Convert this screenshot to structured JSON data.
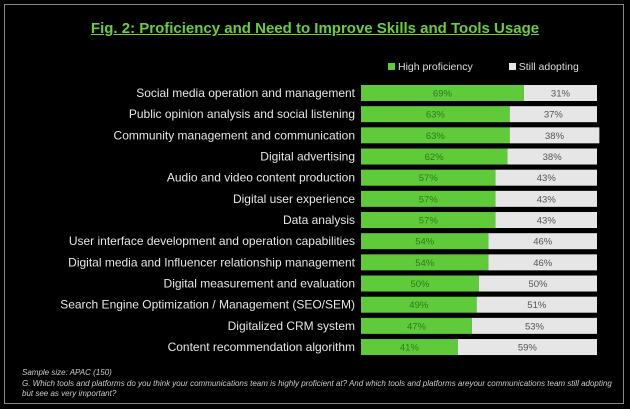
{
  "chart_data": {
    "type": "bar",
    "stacked": true,
    "orientation": "horizontal",
    "title": "Fig. 2: Proficiency and Need to Improve Skills and Tools Usage",
    "legend_position": "top-right",
    "categories": [
      "Social media operation and management",
      "Public opinion analysis and social listening",
      "Community management and communication",
      "Digital advertising",
      "Audio and video content production",
      "Digital user experience",
      "Data analysis",
      "User interface development and operation capabilities",
      "Digital media and Influencer relationship management",
      "Digital measurement and evaluation",
      "Search Engine Optimization / Management (SEO/SEM)",
      "Digitalized CRM system",
      "Content recommendation algorithm"
    ],
    "series": [
      {
        "name": "High proficiency",
        "color": "#5fcb3a",
        "values": [
          69,
          63,
          63,
          62,
          57,
          57,
          57,
          54,
          54,
          50,
          49,
          47,
          41
        ]
      },
      {
        "name": "Still adopting",
        "color": "#e6e6e6",
        "values": [
          31,
          37,
          38,
          38,
          43,
          43,
          43,
          46,
          46,
          50,
          51,
          53,
          59
        ]
      }
    ],
    "xlim": [
      0,
      100
    ]
  },
  "notes": {
    "sample": "Sample size: APAC (150)",
    "question": "G. Which tools and platforms do you think your communications team is highly proficient at? And which tools and platforms areyour communications team still adopting but see as very important?"
  }
}
